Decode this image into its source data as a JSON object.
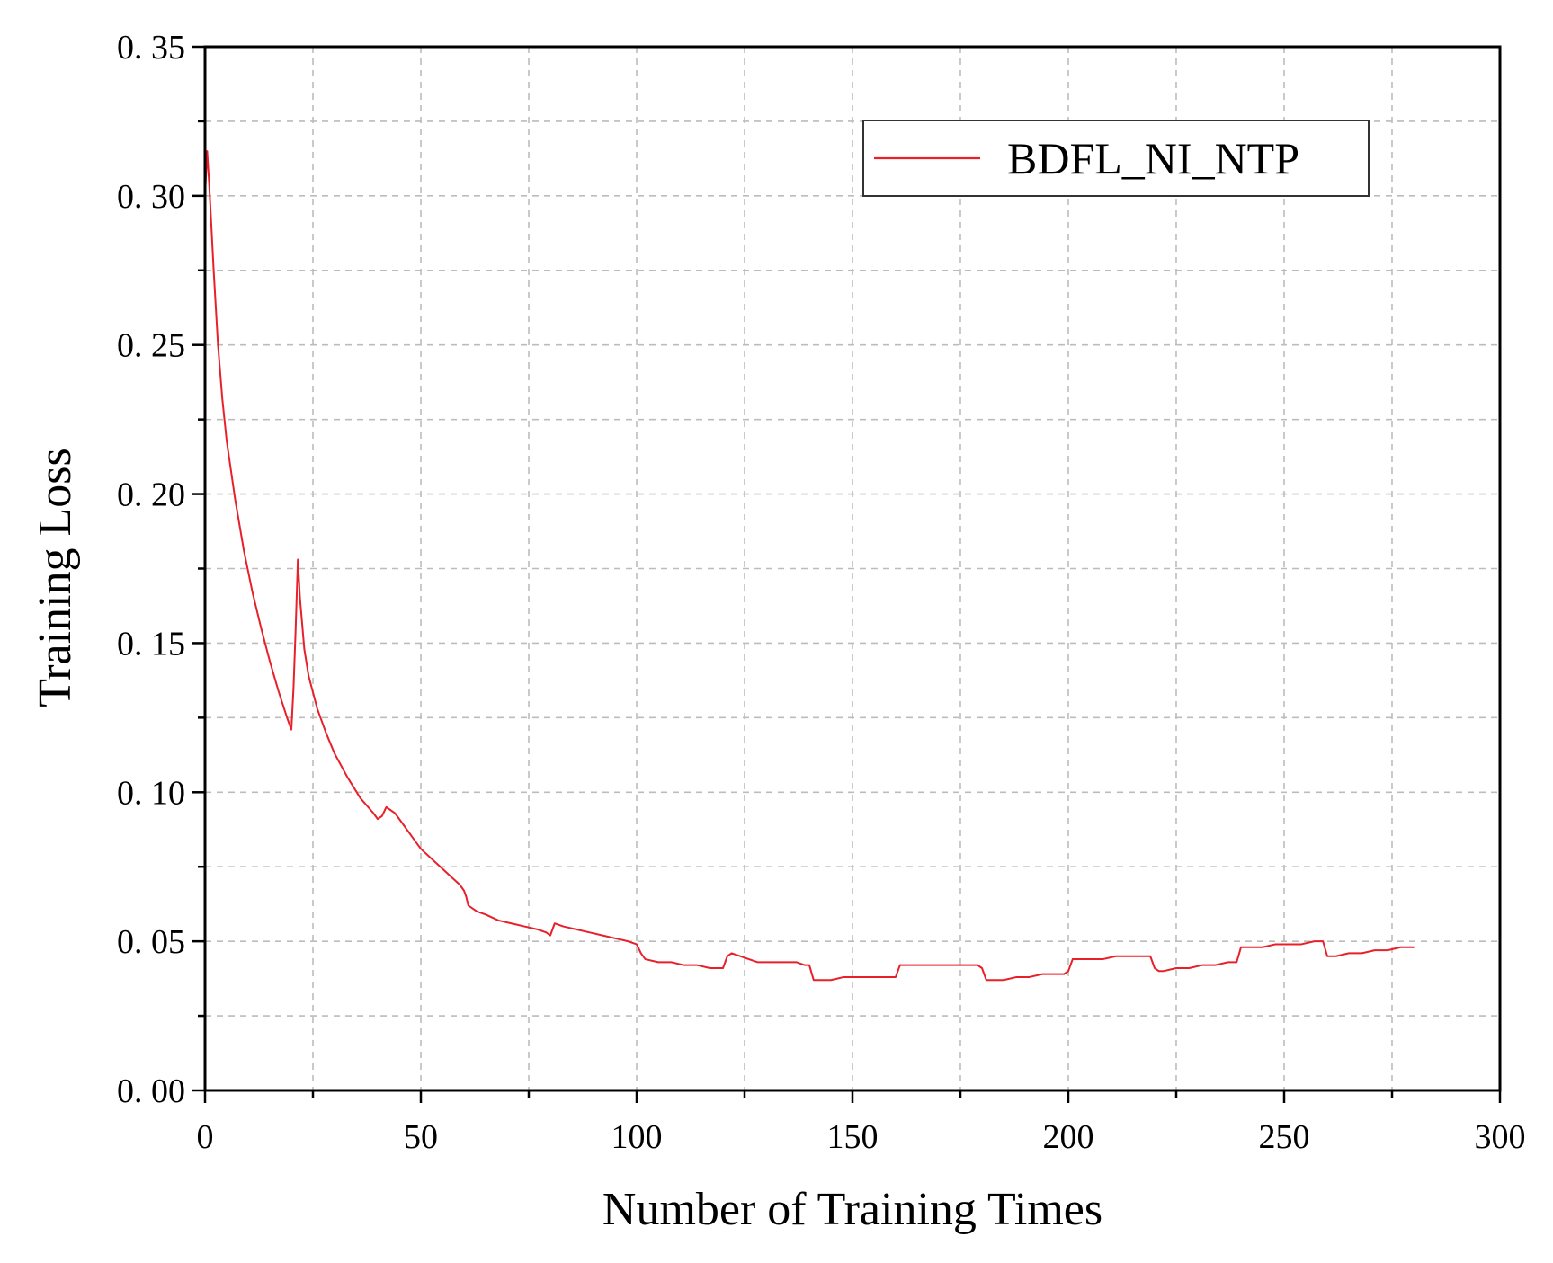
{
  "chart_data": {
    "type": "line",
    "xlabel": "Number of Training Times",
    "ylabel": "Training Loss",
    "xlim": [
      0,
      300
    ],
    "ylim": [
      0,
      0.35
    ],
    "x_major_ticks": [
      0,
      50,
      100,
      150,
      200,
      250,
      300
    ],
    "x_tick_labels": [
      "0",
      "50",
      "100",
      "150",
      "200",
      "250",
      "300"
    ],
    "x_minor_ticks": [
      25,
      75,
      125,
      175,
      225,
      275
    ],
    "y_major_ticks": [
      0,
      0.05,
      0.1,
      0.15,
      0.2,
      0.25,
      0.3,
      0.35
    ],
    "y_tick_labels": [
      "0. 00",
      "0. 05",
      "0. 10",
      "0. 15",
      "0. 20",
      "0. 25",
      "0. 30",
      "0. 35"
    ],
    "y_minor_ticks": [
      0.025,
      0.075,
      0.125,
      0.175,
      0.225,
      0.275,
      0.325
    ],
    "grid": true,
    "legend_position": "top-right",
    "series": [
      {
        "name": "BDFL_NI_NTP",
        "color": "#e8202a",
        "x": [
          0,
          0.5,
          1,
          2,
          3,
          4,
          5,
          7,
          9,
          11,
          13,
          15,
          17,
          19,
          20,
          20.5,
          21,
          21.5,
          22,
          23,
          24,
          26,
          28,
          30,
          33,
          36,
          39,
          40,
          41,
          42,
          44,
          46,
          48,
          50,
          53,
          56,
          59,
          60,
          60.5,
          61,
          63,
          65,
          68,
          71,
          74,
          77,
          79,
          80,
          81,
          83,
          86,
          89,
          92,
          95,
          98,
          100,
          101,
          102,
          105,
          108,
          111,
          114,
          117,
          119,
          120,
          121,
          122,
          124,
          126,
          128,
          131,
          134,
          137,
          139,
          140,
          141,
          142,
          145,
          148,
          151,
          154,
          157,
          159,
          160,
          161,
          162,
          165,
          168,
          171,
          174,
          177,
          179,
          180,
          181,
          182,
          185,
          188,
          191,
          194,
          197,
          199,
          200,
          201,
          202,
          205,
          208,
          211,
          214,
          217,
          219,
          220,
          221,
          222,
          225,
          228,
          231,
          234,
          237,
          239,
          240,
          241,
          242,
          245,
          248,
          251,
          254,
          257,
          259,
          260,
          261,
          262,
          265,
          268,
          271,
          274,
          277,
          279,
          280
        ],
        "values": [
          0.3,
          0.315,
          0.303,
          0.275,
          0.25,
          0.232,
          0.218,
          0.198,
          0.181,
          0.167,
          0.155,
          0.144,
          0.134,
          0.125,
          0.121,
          0.135,
          0.155,
          0.178,
          0.165,
          0.148,
          0.139,
          0.128,
          0.12,
          0.113,
          0.105,
          0.098,
          0.093,
          0.091,
          0.092,
          0.095,
          0.093,
          0.089,
          0.085,
          0.081,
          0.077,
          0.073,
          0.069,
          0.067,
          0.065,
          0.062,
          0.06,
          0.059,
          0.057,
          0.056,
          0.055,
          0.054,
          0.053,
          0.052,
          0.056,
          0.055,
          0.054,
          0.053,
          0.052,
          0.051,
          0.05,
          0.049,
          0.046,
          0.044,
          0.043,
          0.043,
          0.042,
          0.042,
          0.041,
          0.041,
          0.041,
          0.045,
          0.046,
          0.045,
          0.044,
          0.043,
          0.043,
          0.043,
          0.043,
          0.042,
          0.042,
          0.037,
          0.037,
          0.037,
          0.038,
          0.038,
          0.038,
          0.038,
          0.038,
          0.038,
          0.042,
          0.042,
          0.042,
          0.042,
          0.042,
          0.042,
          0.042,
          0.042,
          0.041,
          0.037,
          0.037,
          0.037,
          0.038,
          0.038,
          0.039,
          0.039,
          0.039,
          0.04,
          0.044,
          0.044,
          0.044,
          0.044,
          0.045,
          0.045,
          0.045,
          0.045,
          0.041,
          0.04,
          0.04,
          0.041,
          0.041,
          0.042,
          0.042,
          0.043,
          0.043,
          0.048,
          0.048,
          0.048,
          0.048,
          0.049,
          0.049,
          0.049,
          0.05,
          0.05,
          0.045,
          0.045,
          0.045,
          0.046,
          0.046,
          0.047,
          0.047,
          0.048,
          0.048,
          0.048
        ]
      }
    ]
  }
}
